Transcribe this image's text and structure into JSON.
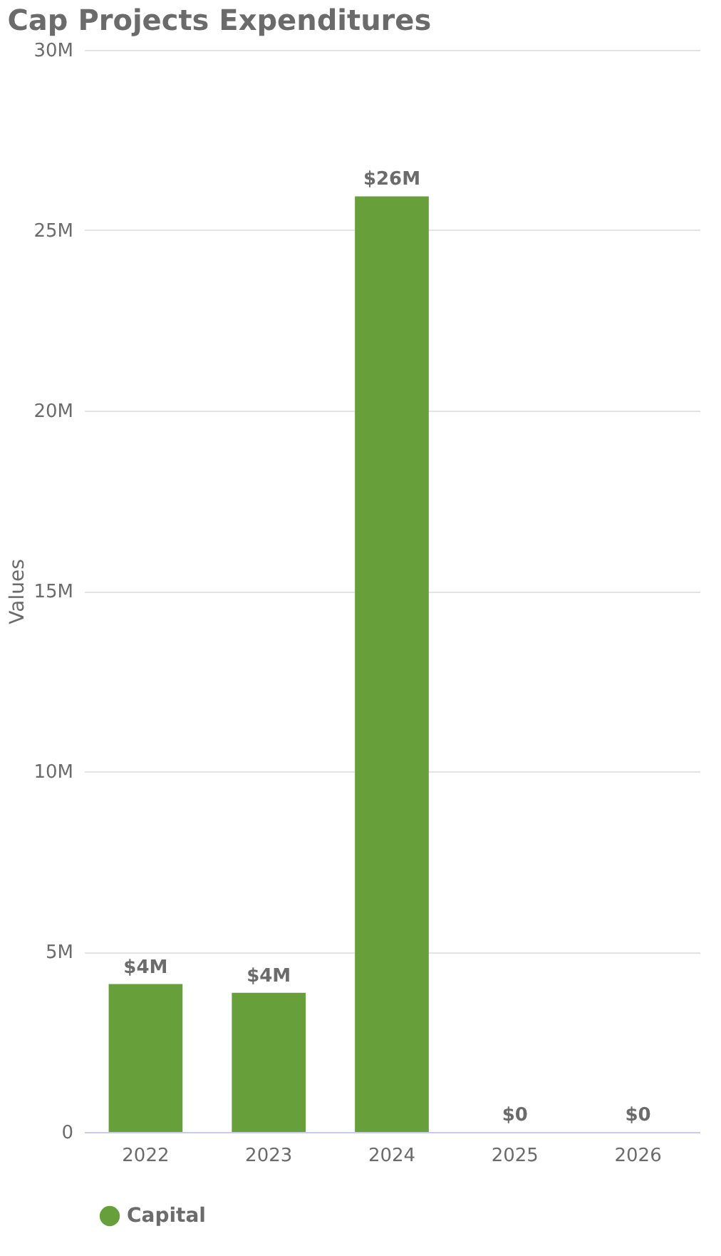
{
  "chart_data": {
    "type": "bar",
    "title": "Cap Projects Expenditures",
    "ylabel": "Values",
    "categories": [
      "2022",
      "2023",
      "2024",
      "2025",
      "2026"
    ],
    "series": [
      {
        "name": "Capital",
        "color": "#67a03a",
        "values": [
          4100000,
          3860000,
          25940000,
          0,
          0
        ],
        "value_labels": [
          "$4M",
          "$4M",
          "$26M",
          "$0",
          "$0"
        ]
      }
    ],
    "ylim": [
      0,
      30000000
    ],
    "yticks": [
      0,
      {
        "value": 5000000,
        "label": "5M"
      },
      {
        "value": 10000000,
        "label": "10M"
      },
      {
        "value": 15000000,
        "label": "15M"
      },
      {
        "value": 20000000,
        "label": "20M"
      },
      {
        "value": 25000000,
        "label": "25M"
      },
      {
        "value": 30000000,
        "label": "30M"
      }
    ],
    "grid": "y",
    "legend": "bottom",
    "marker": "circle"
  }
}
